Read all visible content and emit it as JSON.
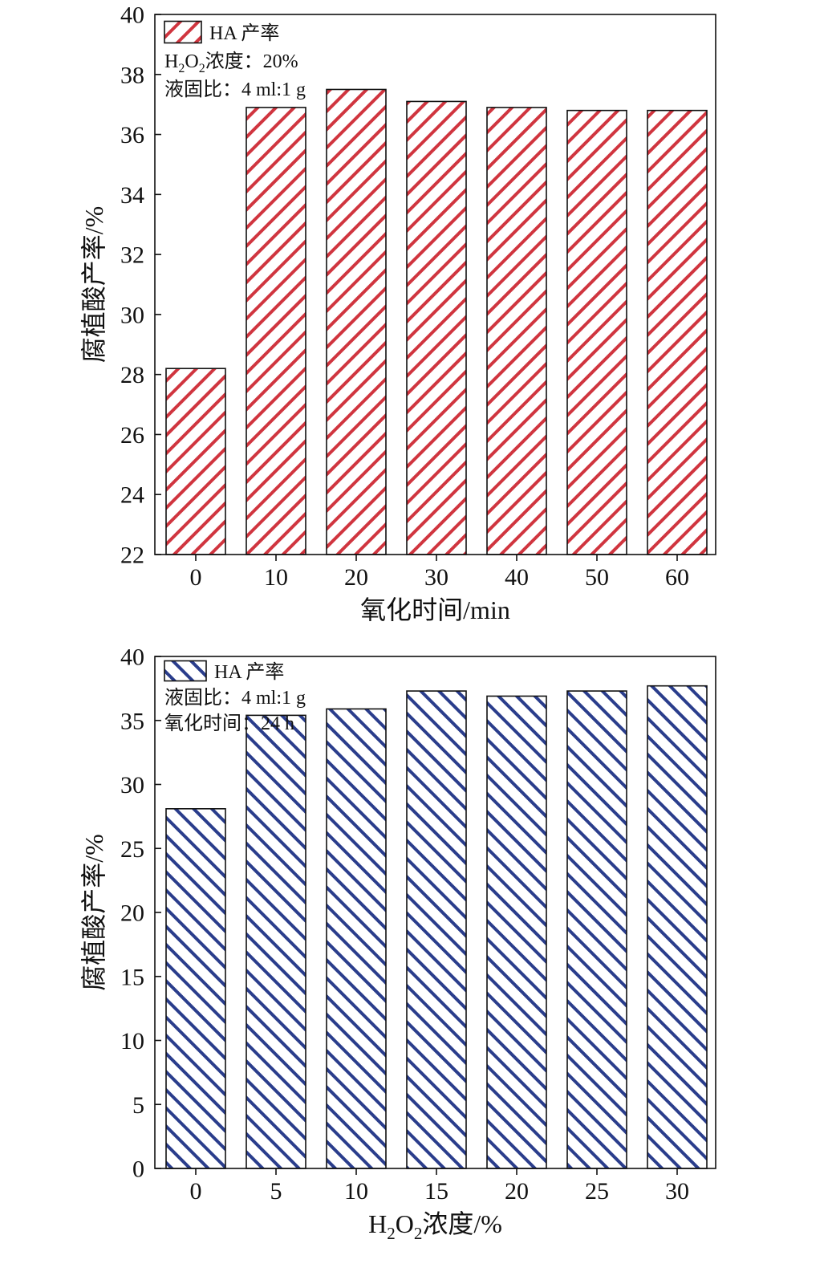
{
  "chart_data": [
    {
      "type": "bar",
      "categories": [
        "0",
        "10",
        "20",
        "30",
        "40",
        "50",
        "60"
      ],
      "series": [
        {
          "name": "HA 产率",
          "values": [
            28.2,
            36.9,
            37.5,
            37.1,
            36.9,
            36.8,
            36.8
          ]
        }
      ],
      "xlabel": "氧化时间/min",
      "ylabel": "腐植酸产率/%",
      "ylim": [
        22,
        40
      ],
      "yticks": [
        22,
        24,
        26,
        28,
        30,
        32,
        34,
        36,
        38,
        40
      ],
      "legend_position": "top-left",
      "annotations": [
        {
          "parts": [
            [
              "H",
              "n"
            ],
            [
              "2",
              "sub"
            ],
            [
              "O",
              "n"
            ],
            [
              "2",
              "sub"
            ],
            [
              "浓度：20%",
              "n"
            ]
          ]
        },
        {
          "parts": [
            [
              "液固比：4 ml:1 g",
              "n"
            ]
          ]
        }
      ],
      "bar_color": "#d0353f",
      "hatch": "forward-diagonal"
    },
    {
      "type": "bar",
      "categories": [
        "0",
        "5",
        "10",
        "15",
        "20",
        "25",
        "30"
      ],
      "series": [
        {
          "name": "HA 产率",
          "values": [
            28.1,
            35.4,
            35.9,
            37.3,
            36.9,
            37.3,
            37.7
          ]
        }
      ],
      "xlabel_parts": [
        [
          "H",
          "n"
        ],
        [
          "2",
          "sub"
        ],
        [
          "O",
          "n"
        ],
        [
          "2",
          "sub"
        ],
        [
          "浓度/%",
          "n"
        ]
      ],
      "ylabel": "腐植酸产率/%",
      "ylim": [
        0,
        40
      ],
      "yticks": [
        0,
        5,
        10,
        15,
        20,
        25,
        30,
        35,
        40
      ],
      "legend_position": "top-left",
      "annotations": [
        {
          "parts": [
            [
              "液固比：4 ml:1 g",
              "n"
            ]
          ]
        },
        {
          "parts": [
            [
              "氧化时间：24 h",
              "n"
            ]
          ]
        }
      ],
      "bar_color": "#2a3d8c",
      "hatch": "back-diagonal"
    }
  ]
}
